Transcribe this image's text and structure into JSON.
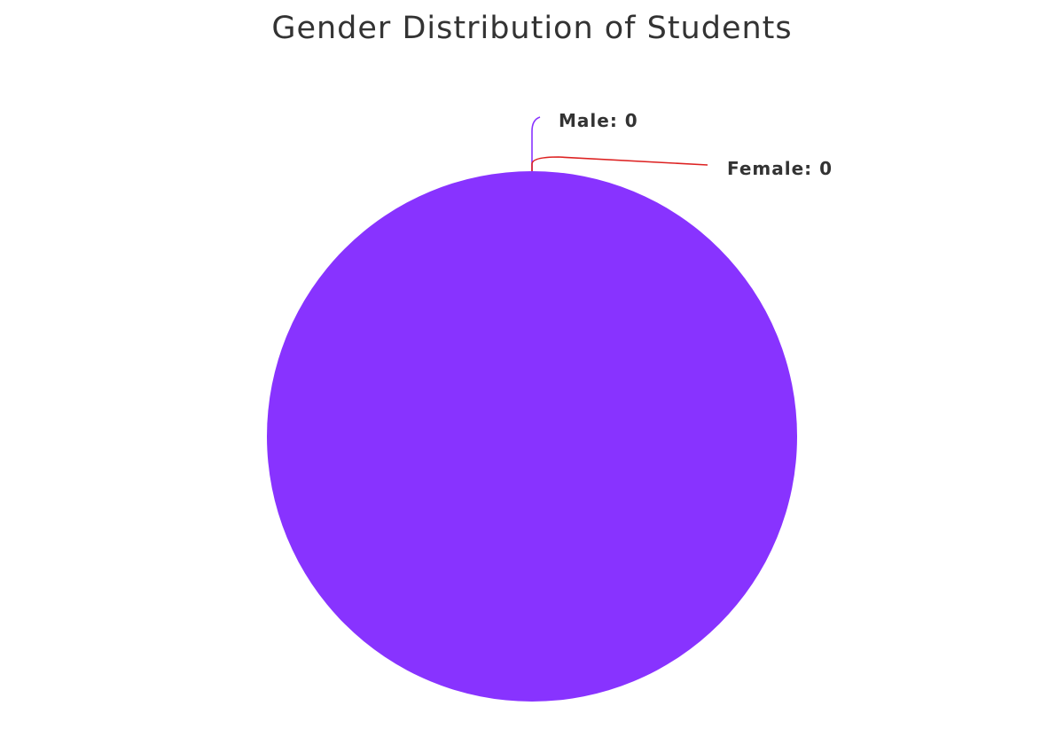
{
  "chart_data": {
    "type": "pie",
    "title": "Gender Distribution of Students",
    "categories": [
      "Male",
      "Female"
    ],
    "values": [
      0,
      0
    ],
    "labels": [
      "Male: 0",
      "Female: 0"
    ],
    "colors": [
      "#8833ff",
      "#dd2222"
    ],
    "legend": "none",
    "grid": false
  }
}
